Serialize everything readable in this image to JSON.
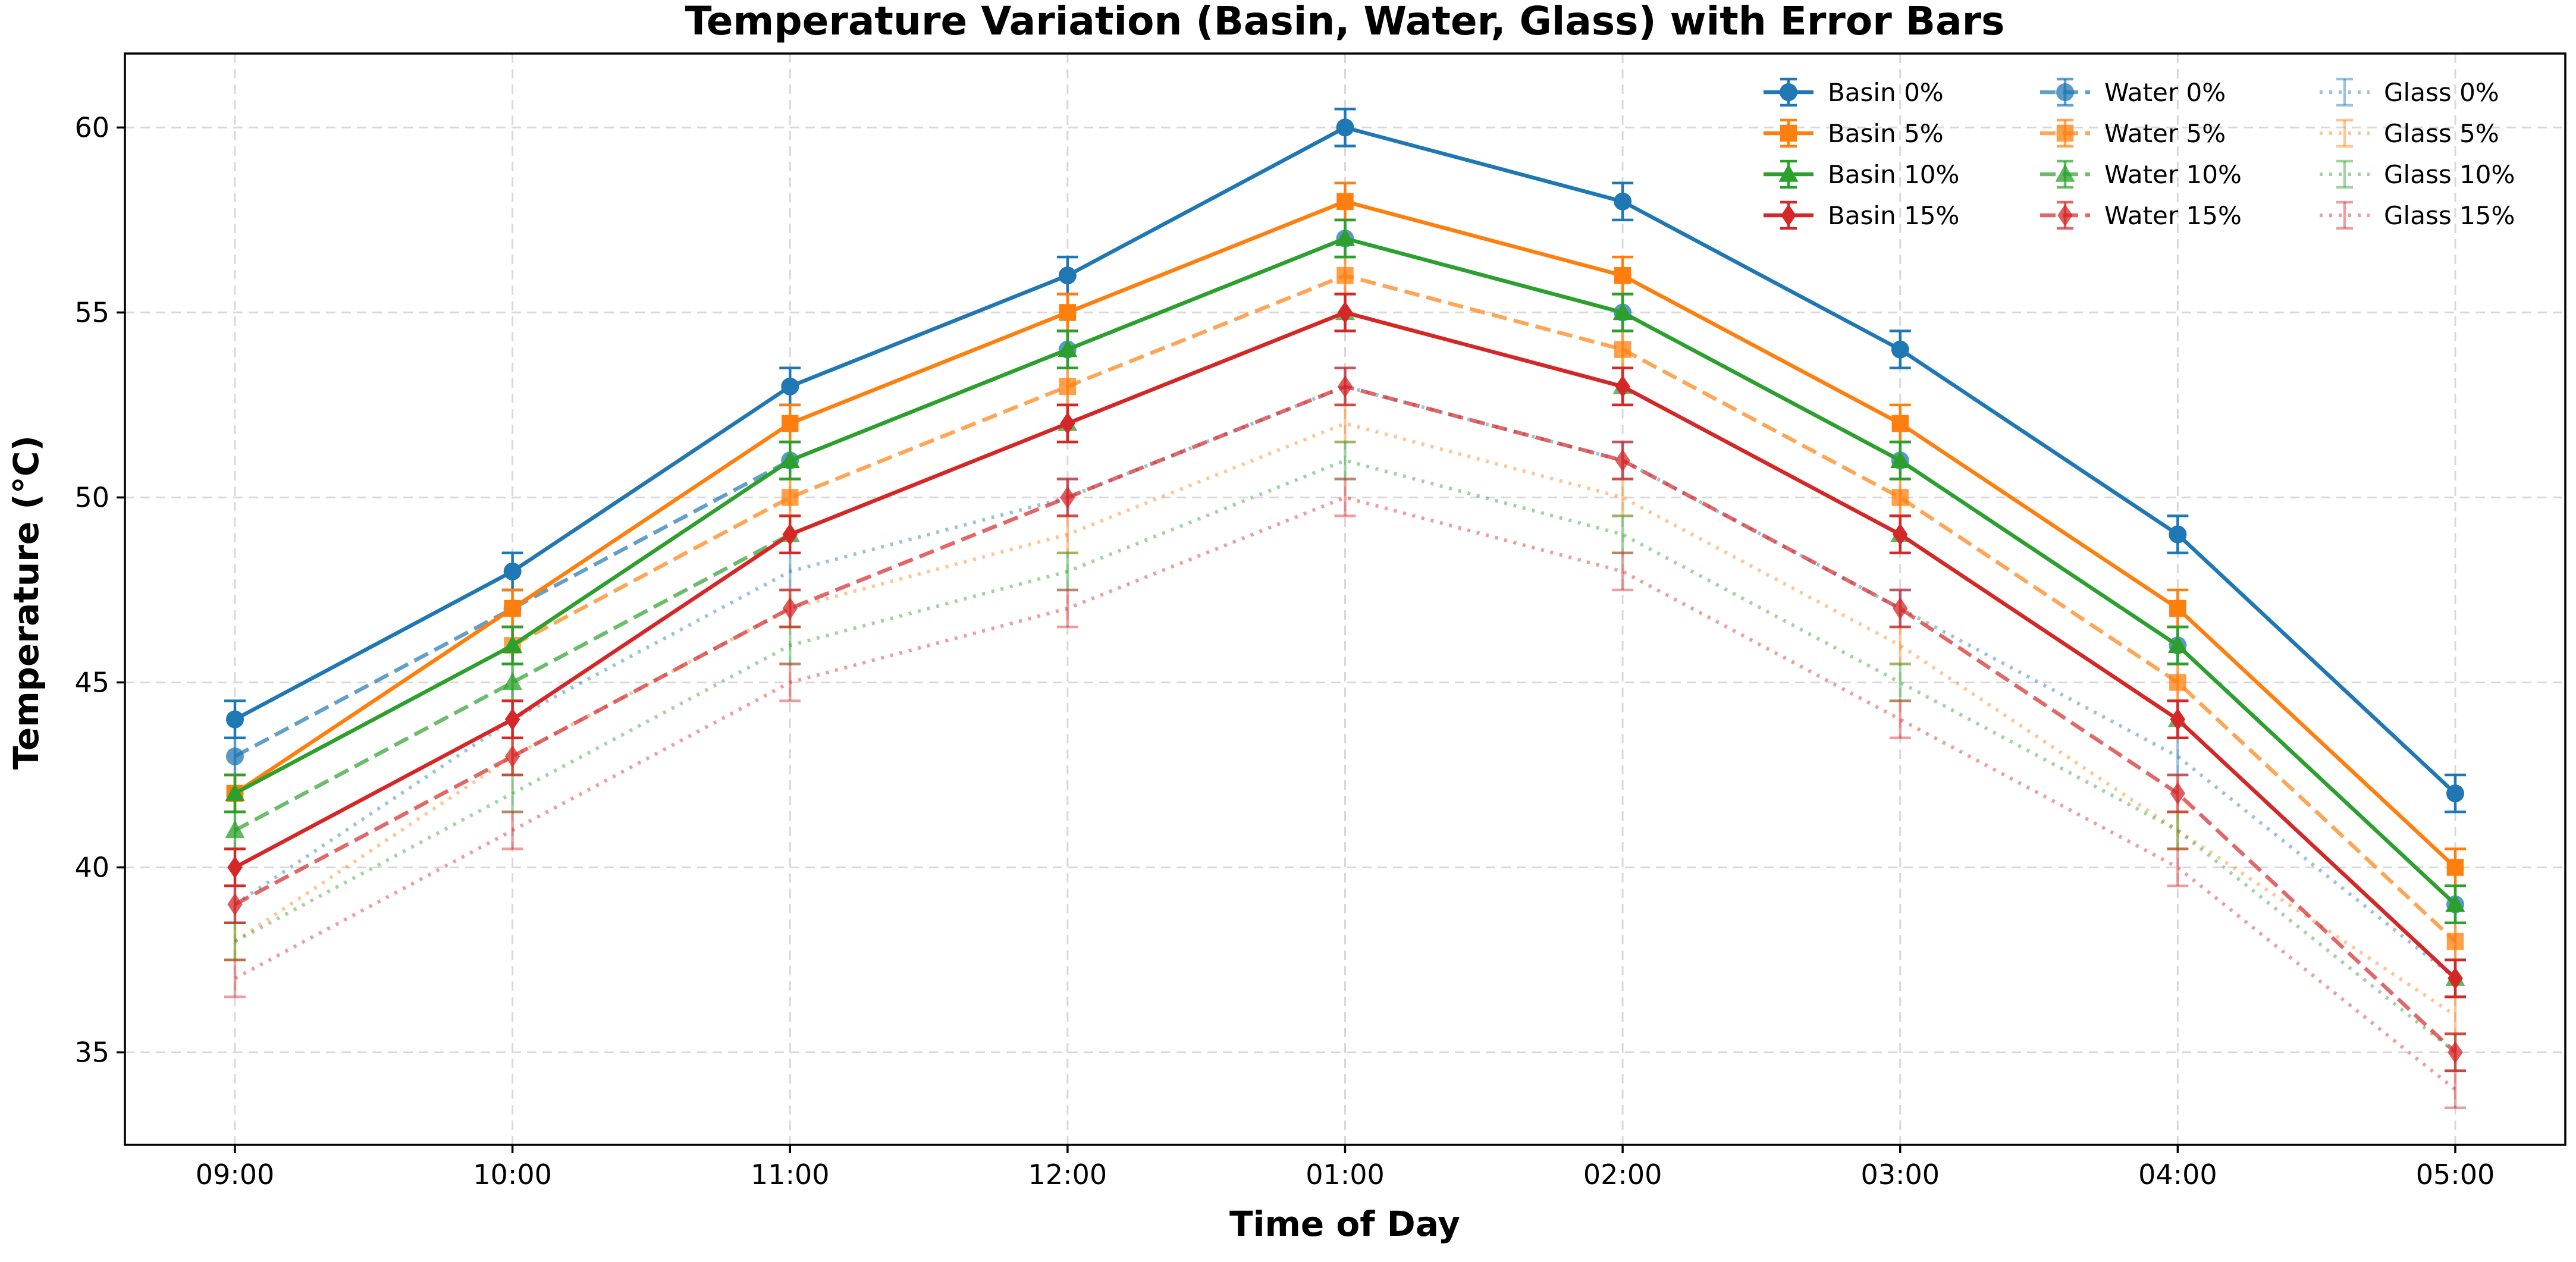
{
  "chart_data": {
    "type": "line",
    "title": "Temperature Variation (Basin, Water, Glass) with Error Bars",
    "xlabel": "Time of Day",
    "ylabel": "Temperature (°C)",
    "categories": [
      "09:00",
      "10:00",
      "11:00",
      "12:00",
      "01:00",
      "02:00",
      "03:00",
      "04:00",
      "05:00"
    ],
    "ylim": [
      32.5,
      62.0
    ],
    "yticks": [
      35,
      40,
      45,
      50,
      55,
      60
    ],
    "grid": true,
    "legend_position": "top-right",
    "error_bar": 0.5,
    "colors": {
      "c0": "#1f77b4",
      "c5": "#ff7f0e",
      "c10": "#2ca02c",
      "c15": "#d62728"
    },
    "series": [
      {
        "name": "Basin 0%",
        "group": "basin",
        "color": "#1f77b4",
        "marker": "circle",
        "values": [
          44,
          48,
          53,
          56,
          60,
          58,
          54,
          49,
          42
        ]
      },
      {
        "name": "Basin 5%",
        "group": "basin",
        "color": "#ff7f0e",
        "marker": "square",
        "values": [
          42,
          47,
          52,
          55,
          58,
          56,
          52,
          47,
          40
        ]
      },
      {
        "name": "Basin 10%",
        "group": "basin",
        "color": "#2ca02c",
        "marker": "triangle",
        "values": [
          42,
          46,
          51,
          54,
          57,
          55,
          51,
          46,
          39
        ]
      },
      {
        "name": "Basin 15%",
        "group": "basin",
        "color": "#d62728",
        "marker": "diamond",
        "values": [
          40,
          44,
          49,
          52,
          55,
          53,
          49,
          44,
          37
        ]
      },
      {
        "name": "Water 0%",
        "group": "water",
        "color": "#1f77b4",
        "marker": "circle",
        "values": [
          43,
          47,
          51,
          54,
          57,
          55,
          51,
          46,
          39
        ]
      },
      {
        "name": "Water 5%",
        "group": "water",
        "color": "#ff7f0e",
        "marker": "square",
        "values": [
          42,
          46,
          50,
          53,
          56,
          54,
          50,
          45,
          38
        ]
      },
      {
        "name": "Water 10%",
        "group": "water",
        "color": "#2ca02c",
        "marker": "triangle",
        "values": [
          41,
          45,
          49,
          52,
          55,
          53,
          49,
          44,
          37
        ]
      },
      {
        "name": "Water 15%",
        "group": "water",
        "color": "#d62728",
        "marker": "diamond",
        "values": [
          39,
          43,
          47,
          50,
          53,
          51,
          47,
          42,
          35
        ]
      },
      {
        "name": "Glass 0%",
        "group": "glass",
        "color": "#1f77b4",
        "marker": "none",
        "values": [
          39,
          44,
          48,
          50,
          53,
          51,
          47,
          43,
          37
        ]
      },
      {
        "name": "Glass 5%",
        "group": "glass",
        "color": "#ff7f0e",
        "marker": "none",
        "values": [
          38,
          43,
          47,
          49,
          52,
          50,
          46,
          41,
          36
        ]
      },
      {
        "name": "Glass 10%",
        "group": "glass",
        "color": "#2ca02c",
        "marker": "none",
        "values": [
          38,
          42,
          46,
          48,
          51,
          49,
          45,
          41,
          35
        ]
      },
      {
        "name": "Glass 15%",
        "group": "glass",
        "color": "#d62728",
        "marker": "none",
        "values": [
          37,
          41,
          45,
          47,
          50,
          48,
          44,
          40,
          34
        ]
      }
    ]
  }
}
